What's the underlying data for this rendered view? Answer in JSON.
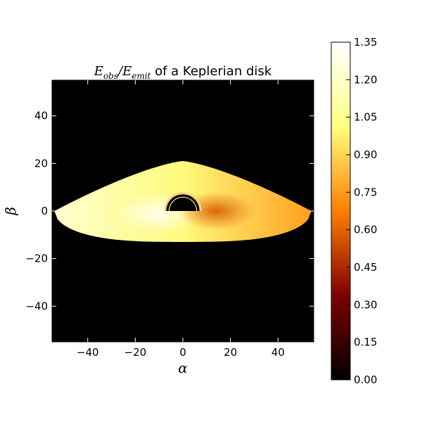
{
  "chart_data": {
    "type": "heatmap",
    "title_math": "E",
    "title_math_sub1": "obs",
    "title_math_mid": "/E",
    "title_math_sub2": "emit",
    "title_rest": " of a Keplerian disk",
    "xlabel": "α",
    "ylabel": "β",
    "xlim": [
      -55,
      55
    ],
    "ylim": [
      -55,
      55
    ],
    "xticks": [
      -40,
      -20,
      0,
      20,
      40
    ],
    "yticks": [
      -40,
      -20,
      0,
      20,
      40
    ],
    "xtick_labels": [
      "−40",
      "−20",
      "0",
      "20",
      "40"
    ],
    "ytick_labels": [
      "−40",
      "−20",
      "0",
      "20",
      "40"
    ],
    "colorbar": {
      "range": [
        0.0,
        1.35
      ],
      "ticks": [
        0.0,
        0.15,
        0.3,
        0.45,
        0.6,
        0.75,
        0.9,
        1.05,
        1.2,
        1.35
      ],
      "tick_labels": [
        "0.00",
        "0.15",
        "0.30",
        "0.45",
        "0.60",
        "0.75",
        "0.90",
        "1.05",
        "1.20",
        "1.35"
      ],
      "colormap": "afmhot"
    },
    "background_value": 0.0,
    "disk": {
      "alpha_range": [
        -54,
        54
      ],
      "beta_top": 21,
      "beta_bottom": -13,
      "inner_shadow_radius": 7,
      "value_left": 1.22,
      "value_center": 1.0,
      "value_right": 0.76
    },
    "colors": {
      "background": "#000000",
      "frame": "#000000"
    }
  }
}
